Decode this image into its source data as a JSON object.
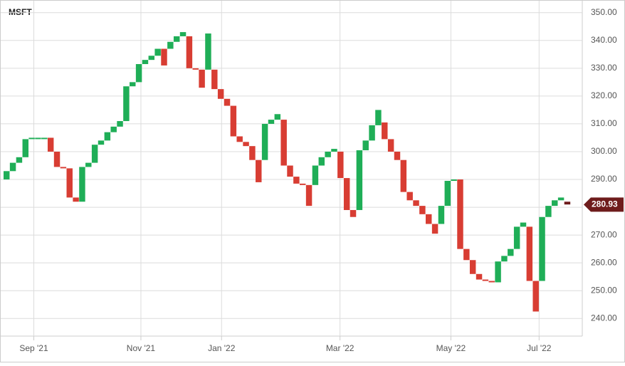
{
  "chart_data": {
    "type": "linebreak",
    "title": "MSFT",
    "open": [
      290,
      293,
      296,
      298,
      304.5,
      304.5,
      304.5,
      305,
      300,
      294.5,
      294,
      283.5,
      282,
      294.5,
      296,
      302.5,
      304,
      307,
      309,
      311,
      323.5,
      325,
      331.5,
      333,
      334.5,
      337,
      337,
      339.5,
      341.5,
      341.5,
      330,
      329.5,
      329.5,
      329.5,
      322.5,
      319,
      316.5,
      305.5,
      303.5,
      302,
      297,
      297,
      310,
      311.5,
      311.5,
      295,
      291,
      288.5,
      288,
      288,
      295,
      298,
      300,
      300,
      290.5,
      279,
      279,
      300.5,
      304,
      309.5,
      310.5,
      304.5,
      300,
      297,
      285.5,
      282.5,
      280.5,
      277.5,
      274,
      274,
      280.5,
      289.5,
      290,
      265,
      261,
      256,
      254,
      253.5,
      253,
      260.5,
      262.5,
      265,
      273,
      273,
      253.5,
      253.5,
      276.5,
      280.5,
      282.5,
      282
    ],
    "close": [
      293,
      296,
      298,
      304.5,
      305,
      305,
      305,
      300,
      294.5,
      294,
      283.5,
      282,
      294.5,
      296,
      302.5,
      304,
      307,
      309,
      311,
      323.5,
      325,
      331.5,
      333,
      334.5,
      337,
      331,
      339.5,
      341.5,
      343,
      330,
      329.5,
      323,
      342.5,
      322.5,
      319,
      316.5,
      305.5,
      303.5,
      302,
      297,
      289,
      310,
      311.5,
      313.5,
      295,
      291,
      288.5,
      288,
      280.5,
      295,
      298,
      300,
      301,
      290.5,
      279,
      276.5,
      300.5,
      304,
      309.5,
      315,
      304.5,
      300,
      297,
      285.5,
      282.5,
      280.5,
      277.5,
      274,
      270.5,
      280.5,
      289.5,
      290,
      265,
      261,
      256,
      254,
      253.5,
      253,
      260.5,
      262.5,
      265,
      273,
      274.5,
      253.5,
      242.5,
      276.5,
      280.5,
      282.5,
      283.5,
      281
    ],
    "up_color": "#1fae57",
    "down_color": "#d83d33",
    "last_color": "#6e1c1c",
    "last_price": 280.93,
    "ylim": [
      237.5,
      352.5
    ],
    "yticks": [
      {
        "value": 240,
        "label": "240.00"
      },
      {
        "value": 250,
        "label": "250.00"
      },
      {
        "value": 260,
        "label": "260.00"
      },
      {
        "value": 270,
        "label": "270.00"
      },
      {
        "value": 280,
        "label": "280.00"
      },
      {
        "value": 290,
        "label": "290.00"
      },
      {
        "value": 300,
        "label": "300.00"
      },
      {
        "value": 310,
        "label": "310.00"
      },
      {
        "value": 320,
        "label": "320.00"
      },
      {
        "value": 330,
        "label": "330.00"
      },
      {
        "value": 340,
        "label": "340.00"
      },
      {
        "value": 350,
        "label": "350.00"
      }
    ],
    "xlim": [
      0,
      90.5
    ],
    "xticks": [
      {
        "value": 4.8,
        "label": "Sep '21"
      },
      {
        "value": 21.8,
        "label": "Nov '21"
      },
      {
        "value": 34.6,
        "label": "Jan '22"
      },
      {
        "value": 53.4,
        "label": "Mar '22"
      },
      {
        "value": 71,
        "label": "May '22"
      },
      {
        "value": 85,
        "label": "Jul '22"
      }
    ],
    "grid": true
  }
}
